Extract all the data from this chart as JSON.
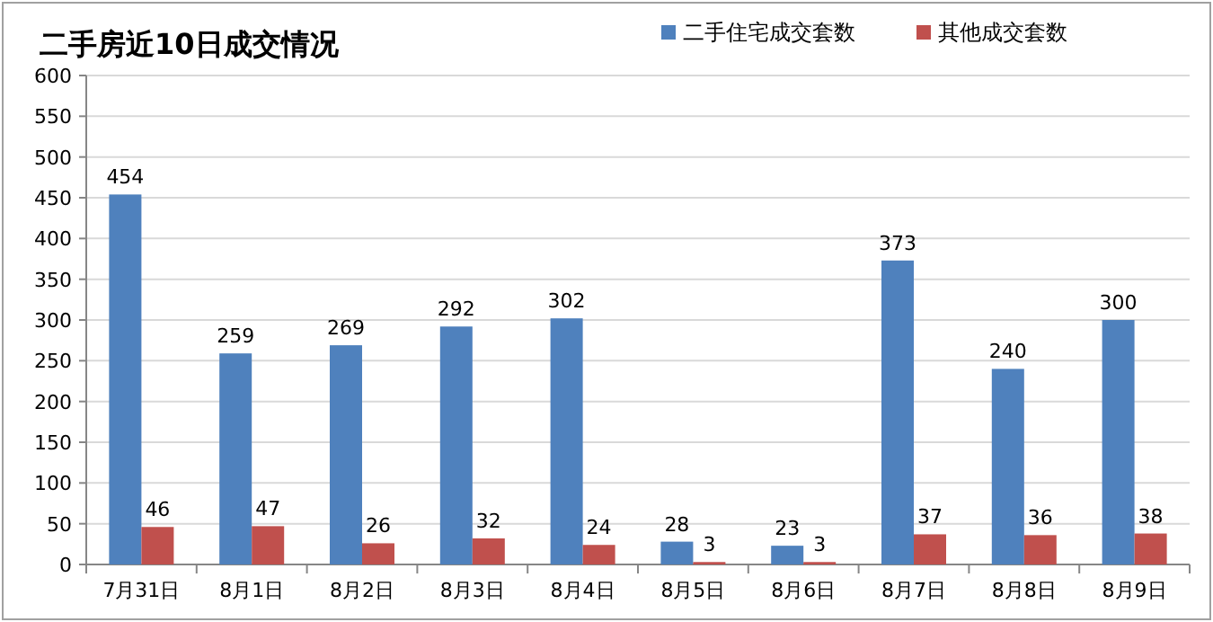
{
  "chart_data": {
    "type": "bar",
    "title": "二手房近10日成交情况",
    "categories": [
      "7月31日",
      "8月1日",
      "8月2日",
      "8月3日",
      "8月4日",
      "8月5日",
      "8月6日",
      "8月7日",
      "8月8日",
      "8月9日"
    ],
    "series": [
      {
        "name": "二手住宅成交套数",
        "color": "#4f81bd",
        "values": [
          454,
          259,
          269,
          292,
          302,
          28,
          23,
          373,
          240,
          300
        ]
      },
      {
        "name": "其他成交套数",
        "color": "#c0504d",
        "values": [
          46,
          47,
          26,
          32,
          24,
          3,
          3,
          37,
          36,
          38
        ]
      }
    ],
    "ylim": [
      0,
      600
    ],
    "yticks": [
      0,
      50,
      100,
      150,
      200,
      250,
      300,
      350,
      400,
      450,
      500,
      550,
      600
    ],
    "grid": "y",
    "legend": "top right",
    "data_labels": true
  }
}
